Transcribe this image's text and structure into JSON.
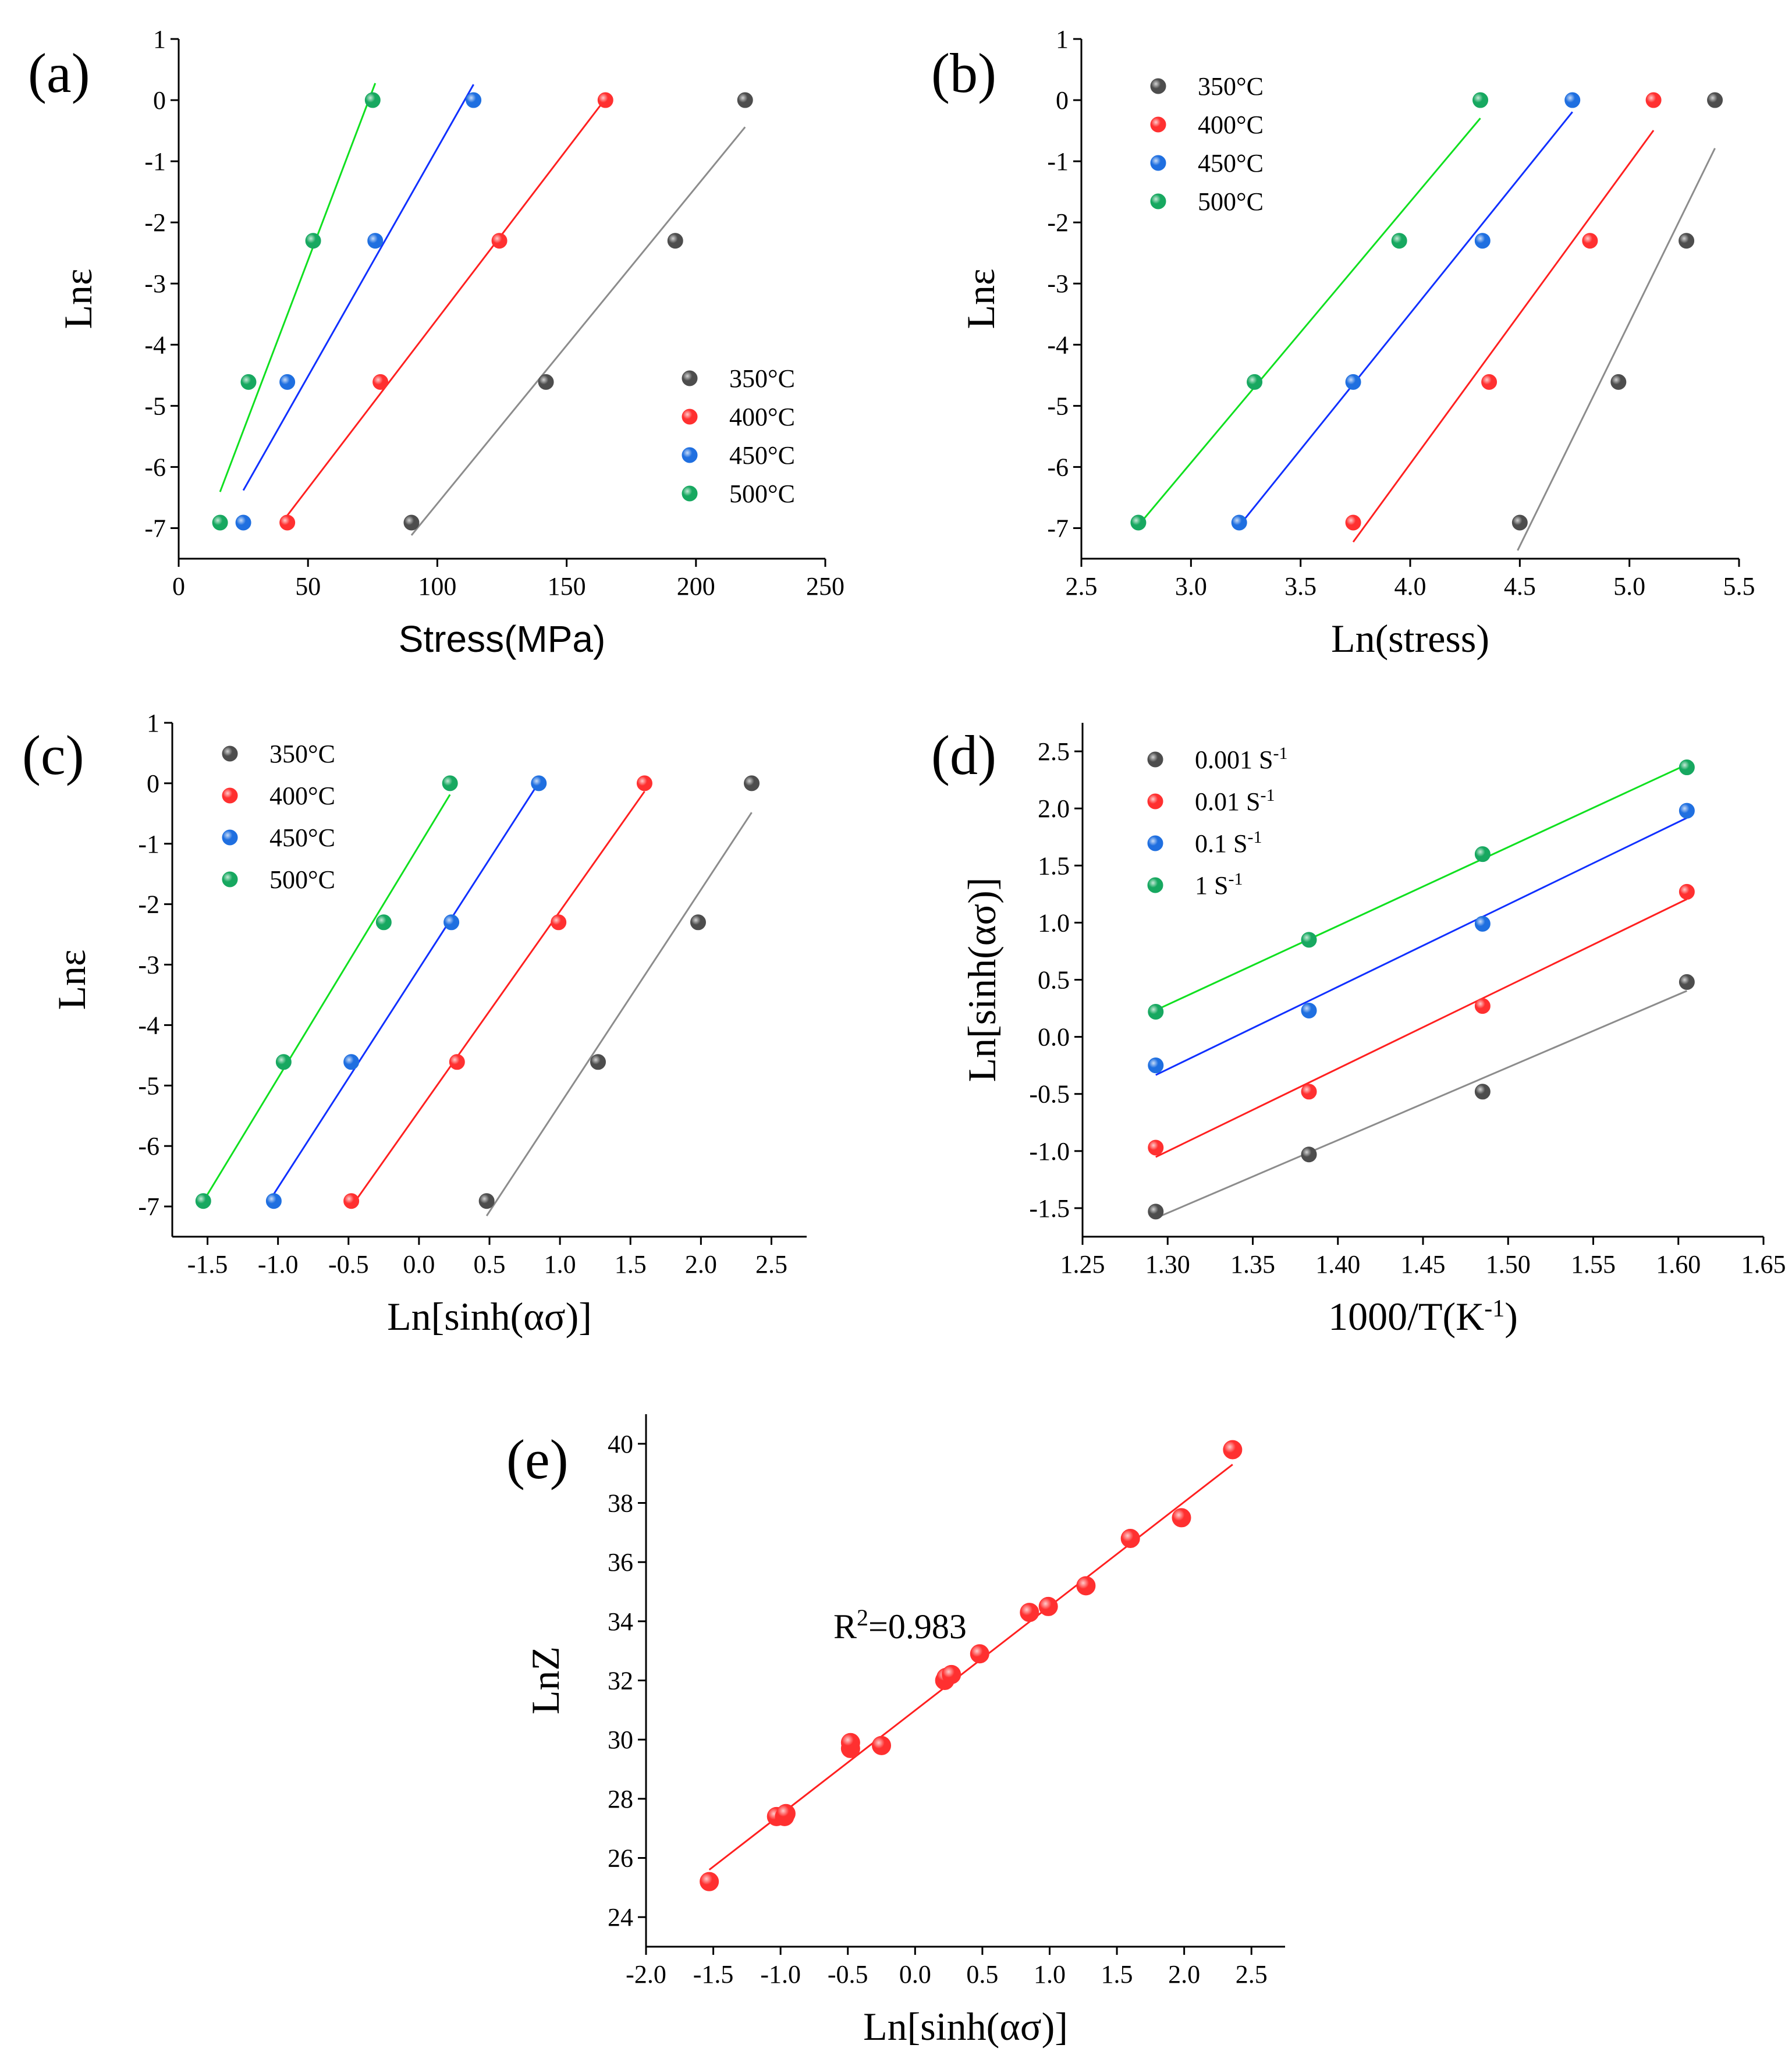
{
  "colors": {
    "350": "#4d4d4d",
    "400": "#ff3030",
    "450": "#1f6fe0",
    "500": "#17a860"
  },
  "chart_data": [
    {
      "panel": "(a)",
      "type": "scatter",
      "xlabel": "Stress(MPa)",
      "ylabel": "Lnε",
      "xlim": [
        0,
        250
      ],
      "ylim": [
        -7.5,
        1
      ],
      "xticks": [
        0,
        50,
        100,
        150,
        200,
        250
      ],
      "yticks": [
        1,
        0,
        -1,
        -2,
        -3,
        -4,
        -5,
        -6,
        -7
      ],
      "legend_position": "bottom-right",
      "series": [
        {
          "name": "350°C",
          "color_key": "350",
          "x": [
            90,
            142,
            192,
            219
          ],
          "y": [
            -6.91,
            -4.61,
            -2.3,
            0
          ],
          "fit_x": [
            90,
            219
          ]
        },
        {
          "name": "400°C",
          "color_key": "400",
          "x": [
            42,
            78,
            124,
            165
          ],
          "y": [
            -6.91,
            -4.61,
            -2.3,
            0
          ],
          "fit_x": [
            40,
            165
          ]
        },
        {
          "name": "450°C",
          "color_key": "450",
          "x": [
            25,
            42,
            76,
            114
          ],
          "y": [
            -6.91,
            -4.61,
            -2.3,
            0
          ],
          "fit_x": [
            25,
            114
          ]
        },
        {
          "name": "500°C",
          "color_key": "500",
          "x": [
            16,
            27,
            52,
            75
          ],
          "y": [
            -6.91,
            -4.61,
            -2.3,
            0
          ],
          "fit_x": [
            16,
            76
          ]
        }
      ]
    },
    {
      "panel": "(b)",
      "type": "scatter",
      "xlabel": "Ln(stress)",
      "ylabel": "Lnε",
      "xlim": [
        2.5,
        5.5
      ],
      "ylim": [
        -7.5,
        1
      ],
      "xticks": [
        2.5,
        3.0,
        3.5,
        4.0,
        4.5,
        5.0,
        5.5
      ],
      "yticks": [
        1,
        0,
        -1,
        -2,
        -3,
        -4,
        -5,
        -6,
        -7
      ],
      "legend_position": "top-left",
      "series": [
        {
          "name": "350°C",
          "color_key": "350",
          "x": [
            4.5,
            4.95,
            5.26,
            5.39
          ],
          "y": [
            -6.91,
            -4.61,
            -2.3,
            0
          ],
          "fit_x": [
            4.49,
            5.39
          ]
        },
        {
          "name": "400°C",
          "color_key": "400",
          "x": [
            3.74,
            4.36,
            4.82,
            5.11
          ],
          "y": [
            -6.91,
            -4.61,
            -2.3,
            0
          ],
          "fit_x": [
            3.74,
            5.11
          ]
        },
        {
          "name": "450°C",
          "color_key": "450",
          "x": [
            3.22,
            3.74,
            4.33,
            4.74
          ],
          "y": [
            -6.91,
            -4.61,
            -2.3,
            0
          ],
          "fit_x": [
            3.22,
            4.74
          ]
        },
        {
          "name": "500°C",
          "color_key": "500",
          "x": [
            2.76,
            3.29,
            3.95,
            4.32
          ],
          "y": [
            -6.91,
            -4.61,
            -2.3,
            0
          ],
          "fit_x": [
            2.76,
            4.32
          ]
        }
      ]
    },
    {
      "panel": "(c)",
      "type": "scatter",
      "xlabel": "Ln[sinh(ασ)]",
      "ylabel": "Lnε",
      "xlim": [
        -1.75,
        2.75
      ],
      "ylim": [
        -7.5,
        1
      ],
      "xticks": [
        -1.5,
        -1.0,
        -0.5,
        0.0,
        0.5,
        1.0,
        1.5,
        2.0,
        2.5
      ],
      "yticks": [
        1,
        0,
        -1,
        -2,
        -3,
        -4,
        -5,
        -6,
        -7
      ],
      "legend_position": "top-left",
      "series": [
        {
          "name": "350°C",
          "color_key": "350",
          "x": [
            0.48,
            1.27,
            1.98,
            2.36
          ],
          "y": [
            -6.91,
            -4.61,
            -2.3,
            0
          ],
          "fit_x": [
            0.48,
            2.36
          ]
        },
        {
          "name": "400°C",
          "color_key": "400",
          "x": [
            -0.48,
            0.27,
            0.99,
            1.6
          ],
          "y": [
            -6.91,
            -4.61,
            -2.3,
            0
          ],
          "fit_x": [
            -0.48,
            1.6
          ]
        },
        {
          "name": "450°C",
          "color_key": "450",
          "x": [
            -1.03,
            -0.48,
            0.23,
            0.85
          ],
          "y": [
            -6.91,
            -4.61,
            -2.3,
            0
          ],
          "fit_x": [
            -1.03,
            0.85
          ]
        },
        {
          "name": "500°C",
          "color_key": "500",
          "x": [
            -1.53,
            -0.96,
            -0.25,
            0.22
          ],
          "y": [
            -6.91,
            -4.61,
            -2.3,
            0
          ],
          "fit_x": [
            -1.53,
            0.22
          ]
        }
      ]
    },
    {
      "panel": "(d)",
      "type": "scatter",
      "xlabel": "1000/T(K",
      "xlabel_sup": "-1",
      "xlabel_end": ")",
      "ylabel": "Ln[sinh(ασ)]",
      "xlim": [
        1.25,
        1.65
      ],
      "ylim": [
        -1.75,
        2.75
      ],
      "xticks": [
        1.25,
        1.3,
        1.35,
        1.4,
        1.45,
        1.5,
        1.55,
        1.6,
        1.65
      ],
      "yticks": [
        2.5,
        2.0,
        1.5,
        1.0,
        0.5,
        0.0,
        -0.5,
        -1.0,
        -1.5
      ],
      "legend_position": "top-left",
      "series": [
        {
          "name": "0.001 S",
          "name_sup": "-1",
          "color_key": "350",
          "x": [
            1.293,
            1.383,
            1.485,
            1.605
          ],
          "y": [
            -1.53,
            -1.03,
            -0.48,
            0.48
          ],
          "fit_x": [
            1.293,
            1.605
          ]
        },
        {
          "name": "0.01 S",
          "name_sup": "-1",
          "color_key": "400",
          "x": [
            1.293,
            1.383,
            1.485,
            1.605
          ],
          "y": [
            -0.97,
            -0.48,
            0.27,
            1.27
          ],
          "fit_x": [
            1.293,
            1.605
          ]
        },
        {
          "name": "0.1 S",
          "name_sup": "-1",
          "color_key": "450",
          "x": [
            1.293,
            1.383,
            1.485,
            1.605
          ],
          "y": [
            -0.25,
            0.23,
            0.99,
            1.98
          ],
          "fit_x": [
            1.293,
            1.605
          ]
        },
        {
          "name": "1 S",
          "name_sup": "-1",
          "color_key": "500",
          "x": [
            1.293,
            1.383,
            1.485,
            1.605
          ],
          "y": [
            0.22,
            0.85,
            1.6,
            2.36
          ],
          "fit_x": [
            1.293,
            1.605
          ]
        }
      ]
    },
    {
      "panel": "(e)",
      "type": "scatter",
      "xlabel": "Ln[sinh(ασ)]",
      "ylabel": "LnZ",
      "xlim": [
        -2.0,
        2.75
      ],
      "ylim": [
        23,
        41
      ],
      "xticks": [
        -2.0,
        -1.5,
        -1.0,
        -0.5,
        0.0,
        0.5,
        1.0,
        1.5,
        2.0,
        2.5
      ],
      "yticks": [
        40,
        38,
        36,
        34,
        32,
        30,
        28,
        26,
        24
      ],
      "annotation": "R",
      "annotation_sup": "2",
      "annotation_end": "=0.983",
      "series": [
        {
          "color_key": "400",
          "x": [
            -1.53,
            -1.03,
            -0.97,
            -0.96,
            -0.48,
            -0.48,
            -0.25,
            0.22,
            0.23,
            0.27,
            0.48,
            0.85,
            0.99,
            1.27,
            1.6,
            1.98,
            2.36
          ],
          "y": [
            25.2,
            27.4,
            27.4,
            27.5,
            29.7,
            29.9,
            29.8,
            32.0,
            32.1,
            32.2,
            32.9,
            34.3,
            34.5,
            35.2,
            36.8,
            37.5,
            39.8
          ],
          "fit_x": [
            -1.53,
            2.36
          ],
          "fit_y": [
            25.6,
            39.3
          ]
        }
      ]
    }
  ]
}
